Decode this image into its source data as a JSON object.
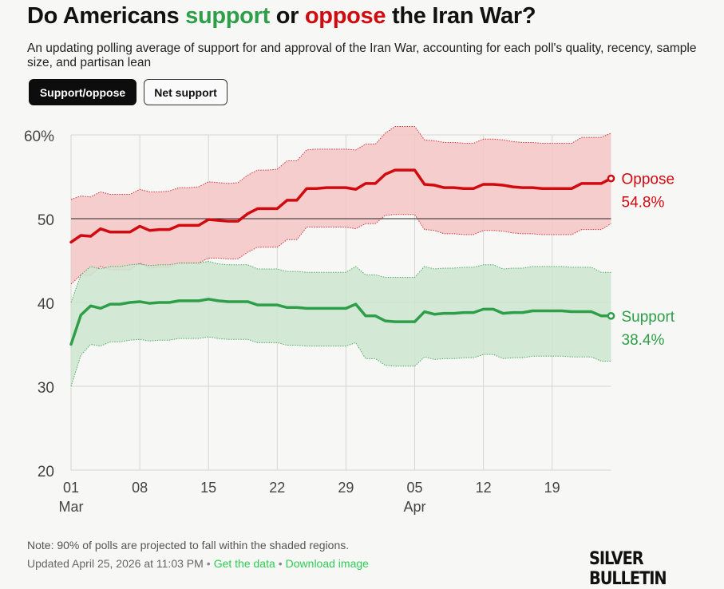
{
  "title": {
    "part1": "Do Americans ",
    "support_word": "support",
    "part2": " or ",
    "oppose_word": "oppose",
    "part3": " the Iran War?"
  },
  "subtitle": "An updating polling average of support for and approval of the Iran War, accounting for each poll's quality, recency, sample size, and partisan lean",
  "toggles": {
    "support_oppose": "Support/oppose",
    "net_support": "Net support"
  },
  "colors": {
    "support": "#2e9e49",
    "support_band": "#cde6d0",
    "oppose": "#d10a10",
    "oppose_band": "#f4c5c5",
    "grid": "#d6d6d0"
  },
  "chart_data": {
    "type": "line",
    "title": "Do Americans support or oppose the Iran War?",
    "xlabel": "",
    "ylabel": "",
    "ylim": [
      20,
      60
    ],
    "y_ticks": [
      20,
      30,
      40,
      50,
      60
    ],
    "y_tick_labels": [
      "20",
      "30",
      "40",
      "50",
      "60%"
    ],
    "x_ticks": [
      {
        "day": 0,
        "label": "01",
        "month": "Mar"
      },
      {
        "day": 7,
        "label": "08",
        "month": ""
      },
      {
        "day": 14,
        "label": "15",
        "month": ""
      },
      {
        "day": 21,
        "label": "22",
        "month": ""
      },
      {
        "day": 28,
        "label": "29",
        "month": ""
      },
      {
        "day": 35,
        "label": "05",
        "month": "Apr"
      },
      {
        "day": 42,
        "label": "12",
        "month": ""
      },
      {
        "day": 49,
        "label": "19",
        "month": ""
      }
    ],
    "reference_line": 50,
    "band_note": "90% of polls projected within shaded regions",
    "series": [
      {
        "name": "Oppose",
        "end_label": "54.8%",
        "x": [
          0,
          1,
          2,
          3,
          4,
          5,
          6,
          7,
          8,
          9,
          10,
          11,
          12,
          13,
          14,
          15,
          16,
          17,
          18,
          19,
          20,
          21,
          22,
          23,
          24,
          25,
          26,
          27,
          28,
          29,
          30,
          31,
          32,
          33,
          34,
          35,
          36,
          37,
          38,
          39,
          40,
          41,
          42,
          43,
          44,
          45,
          46,
          47,
          48,
          49,
          50,
          51,
          52,
          53,
          54,
          55
        ],
        "values": [
          47.2,
          48.0,
          47.9,
          48.8,
          48.4,
          48.4,
          48.4,
          49.1,
          48.6,
          48.7,
          48.7,
          49.2,
          49.2,
          49.2,
          49.9,
          49.8,
          49.7,
          49.7,
          50.6,
          51.2,
          51.2,
          51.2,
          52.2,
          52.2,
          53.6,
          53.6,
          53.7,
          53.7,
          53.7,
          53.5,
          54.2,
          54.2,
          55.3,
          55.8,
          55.8,
          55.8,
          54.1,
          54.0,
          53.7,
          53.7,
          53.6,
          53.6,
          54.1,
          54.1,
          54.0,
          53.8,
          53.7,
          53.7,
          53.6,
          53.6,
          53.6,
          53.6,
          54.2,
          54.2,
          54.2,
          54.8
        ],
        "upper": [
          52.3,
          52.7,
          52.6,
          53.2,
          52.9,
          52.9,
          52.9,
          53.5,
          53.2,
          53.2,
          53.3,
          53.7,
          53.7,
          53.8,
          54.4,
          54.3,
          54.2,
          54.3,
          55.2,
          55.8,
          55.8,
          55.9,
          56.9,
          56.9,
          58.2,
          58.3,
          58.3,
          58.3,
          58.3,
          58.2,
          58.9,
          58.9,
          60.2,
          61.0,
          61.0,
          61.0,
          59.4,
          59.3,
          59.1,
          59.1,
          59.0,
          59.0,
          59.5,
          59.5,
          59.4,
          59.2,
          59.1,
          59.1,
          59.0,
          59.0,
          59.0,
          59.0,
          59.7,
          59.7,
          59.7,
          60.2
        ],
        "lower": [
          42.2,
          43.3,
          43.2,
          44.3,
          43.9,
          43.9,
          43.9,
          44.7,
          44.1,
          44.2,
          44.2,
          44.7,
          44.7,
          44.7,
          45.3,
          45.3,
          45.2,
          45.2,
          46.0,
          46.6,
          46.6,
          46.6,
          47.5,
          47.5,
          49.0,
          49.0,
          49.0,
          49.0,
          49.0,
          48.8,
          49.4,
          49.4,
          50.4,
          50.5,
          50.5,
          50.5,
          48.7,
          48.6,
          48.2,
          48.2,
          48.1,
          48.1,
          48.6,
          48.6,
          48.5,
          48.3,
          48.2,
          48.2,
          48.1,
          48.1,
          48.1,
          48.1,
          48.7,
          48.7,
          48.7,
          49.4
        ]
      },
      {
        "name": "Support",
        "end_label": "38.4%",
        "x": [
          0,
          1,
          2,
          3,
          4,
          5,
          6,
          7,
          8,
          9,
          10,
          11,
          12,
          13,
          14,
          15,
          16,
          17,
          18,
          19,
          20,
          21,
          22,
          23,
          24,
          25,
          26,
          27,
          28,
          29,
          30,
          31,
          32,
          33,
          34,
          35,
          36,
          37,
          38,
          39,
          40,
          41,
          42,
          43,
          44,
          45,
          46,
          47,
          48,
          49,
          50,
          51,
          52,
          53,
          54,
          55
        ],
        "values": [
          35.0,
          38.5,
          39.6,
          39.3,
          39.8,
          39.8,
          40.0,
          40.1,
          39.9,
          40.0,
          40.0,
          40.2,
          40.2,
          40.2,
          40.4,
          40.2,
          40.1,
          40.1,
          40.1,
          39.7,
          39.7,
          39.7,
          39.4,
          39.4,
          39.3,
          39.3,
          39.3,
          39.3,
          39.3,
          39.8,
          38.4,
          38.4,
          37.8,
          37.7,
          37.7,
          37.7,
          38.9,
          38.6,
          38.7,
          38.7,
          38.8,
          38.8,
          39.2,
          39.2,
          38.7,
          38.8,
          38.8,
          39.0,
          39.0,
          39.0,
          39.0,
          38.9,
          38.9,
          38.9,
          38.4,
          38.4
        ],
        "upper": [
          40.0,
          43.3,
          44.3,
          44.0,
          44.3,
          44.3,
          44.5,
          44.6,
          44.4,
          44.5,
          44.5,
          44.7,
          44.7,
          44.7,
          44.9,
          44.6,
          44.5,
          44.5,
          44.5,
          44.0,
          44.0,
          44.0,
          43.7,
          43.7,
          43.6,
          43.6,
          43.6,
          43.6,
          43.6,
          44.3,
          43.3,
          43.3,
          43.0,
          43.0,
          43.0,
          43.0,
          44.3,
          44.0,
          44.1,
          44.1,
          44.2,
          44.2,
          44.5,
          44.5,
          44.0,
          44.1,
          44.1,
          44.3,
          44.3,
          44.3,
          44.3,
          44.2,
          44.2,
          44.2,
          43.6,
          43.6
        ],
        "lower": [
          30.0,
          33.7,
          35.0,
          34.8,
          35.3,
          35.3,
          35.5,
          35.6,
          35.4,
          35.5,
          35.5,
          35.7,
          35.7,
          35.7,
          35.9,
          35.7,
          35.6,
          35.6,
          35.6,
          35.2,
          35.2,
          35.2,
          34.9,
          34.9,
          34.8,
          34.8,
          34.8,
          34.8,
          34.8,
          35.2,
          33.3,
          33.3,
          32.5,
          32.4,
          32.4,
          32.4,
          33.5,
          33.2,
          33.3,
          33.3,
          33.4,
          33.4,
          33.8,
          33.8,
          33.3,
          33.4,
          33.4,
          33.6,
          33.6,
          33.6,
          33.6,
          33.5,
          33.5,
          33.5,
          33.0,
          33.0
        ]
      }
    ]
  },
  "footer": {
    "note": "Note: 90% of polls are projected to fall within the shaded regions.",
    "updated": "Updated April 25, 2026 at 11:03 PM",
    "separator": "•",
    "get_data": "Get the data",
    "download": "Download image",
    "brand": "SILVER BULLETIN"
  }
}
